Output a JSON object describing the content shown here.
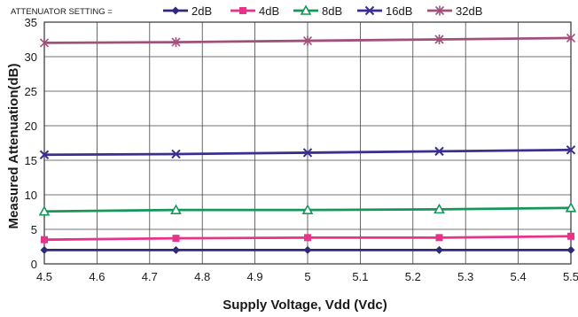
{
  "chart_data": {
    "type": "line",
    "legend_caption": "ATTENUATOR SETTING =",
    "xlabel": "Supply Voltage, Vdd (Vdc)",
    "ylabel": "Measured Attenuation(dB)",
    "xlim": [
      4.5,
      5.5
    ],
    "ylim": [
      0,
      35
    ],
    "x_ticks": [
      "4.5",
      "4.6",
      "4.7",
      "4.8",
      "4.9",
      "5",
      "5.1",
      "5.2",
      "5.3",
      "5.4",
      "5.5"
    ],
    "y_ticks": [
      "0",
      "5",
      "10",
      "15",
      "20",
      "25",
      "30",
      "35"
    ],
    "grid": true,
    "legend_position": "top",
    "x": [
      4.5,
      4.75,
      5.0,
      5.25,
      5.5
    ],
    "series": [
      {
        "name": "2dB",
        "color": "#2e2a7a",
        "marker": "diamond",
        "values": [
          2.0,
          2.0,
          2.0,
          2.0,
          2.0
        ]
      },
      {
        "name": "4dB",
        "color": "#e8338a",
        "marker": "square",
        "values": [
          3.5,
          3.7,
          3.8,
          3.8,
          4.0
        ]
      },
      {
        "name": "8dB",
        "color": "#16975a",
        "marker": "triangle",
        "values": [
          7.6,
          7.8,
          7.8,
          7.9,
          8.1
        ]
      },
      {
        "name": "16dB",
        "color": "#3a2f8f",
        "marker": "x",
        "values": [
          15.8,
          15.9,
          16.1,
          16.3,
          16.5
        ]
      },
      {
        "name": "32dB",
        "color": "#a0507a",
        "marker": "star",
        "values": [
          32.0,
          32.1,
          32.3,
          32.5,
          32.7
        ]
      }
    ]
  }
}
